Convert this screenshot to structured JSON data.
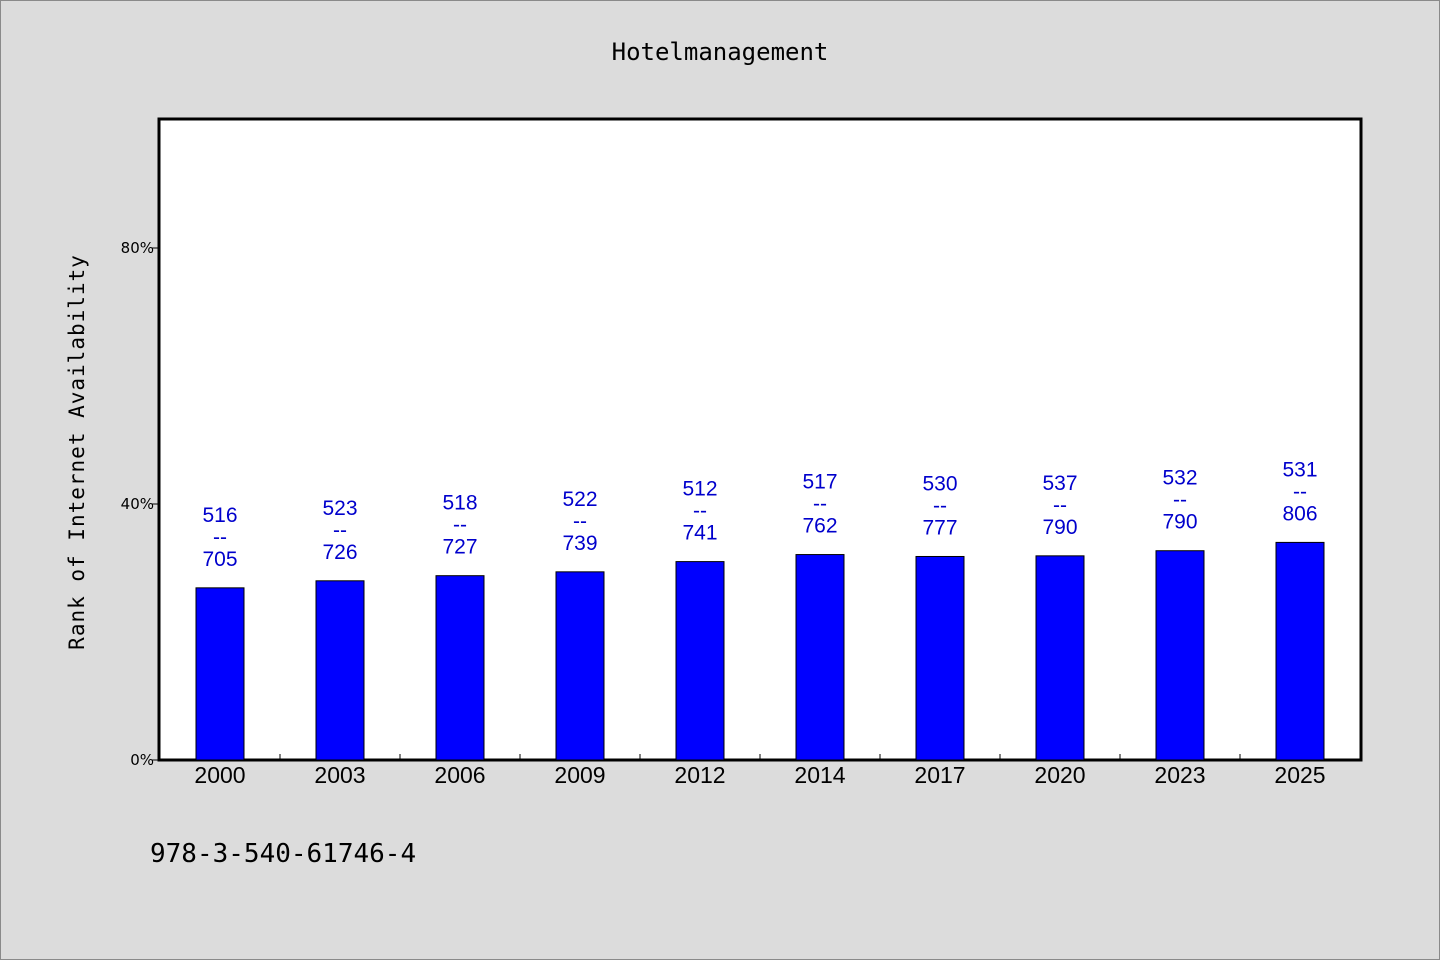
{
  "chart_data": {
    "type": "bar",
    "title": "Hotelmanagement",
    "ylabel": "Rank of Internet Availability",
    "xlabel": "",
    "categories": [
      "2000",
      "2003",
      "2006",
      "2009",
      "2012",
      "2014",
      "2017",
      "2020",
      "2023",
      "2025"
    ],
    "values": [
      26.9,
      28.0,
      28.8,
      29.4,
      31.0,
      32.1,
      31.8,
      31.9,
      32.7,
      34.0
    ],
    "data_labels": [
      [
        "516",
        "--",
        "705"
      ],
      [
        "523",
        "--",
        "726"
      ],
      [
        "518",
        "--",
        "727"
      ],
      [
        "522",
        "--",
        "739"
      ],
      [
        "512",
        "--",
        "741"
      ],
      [
        "517",
        "--",
        "762"
      ],
      [
        "530",
        "--",
        "777"
      ],
      [
        "537",
        "--",
        "790"
      ],
      [
        "532",
        "--",
        "790"
      ],
      [
        "531",
        "--",
        "806"
      ]
    ],
    "ylim": [
      0,
      100
    ],
    "yticks": [
      0,
      40,
      80
    ],
    "ytick_labels": [
      "0%",
      "40%",
      "80%"
    ],
    "grid": false,
    "bar_color": "#0000ff",
    "label_color": "#0000cc"
  },
  "footnote": "978-3-540-61746-4"
}
